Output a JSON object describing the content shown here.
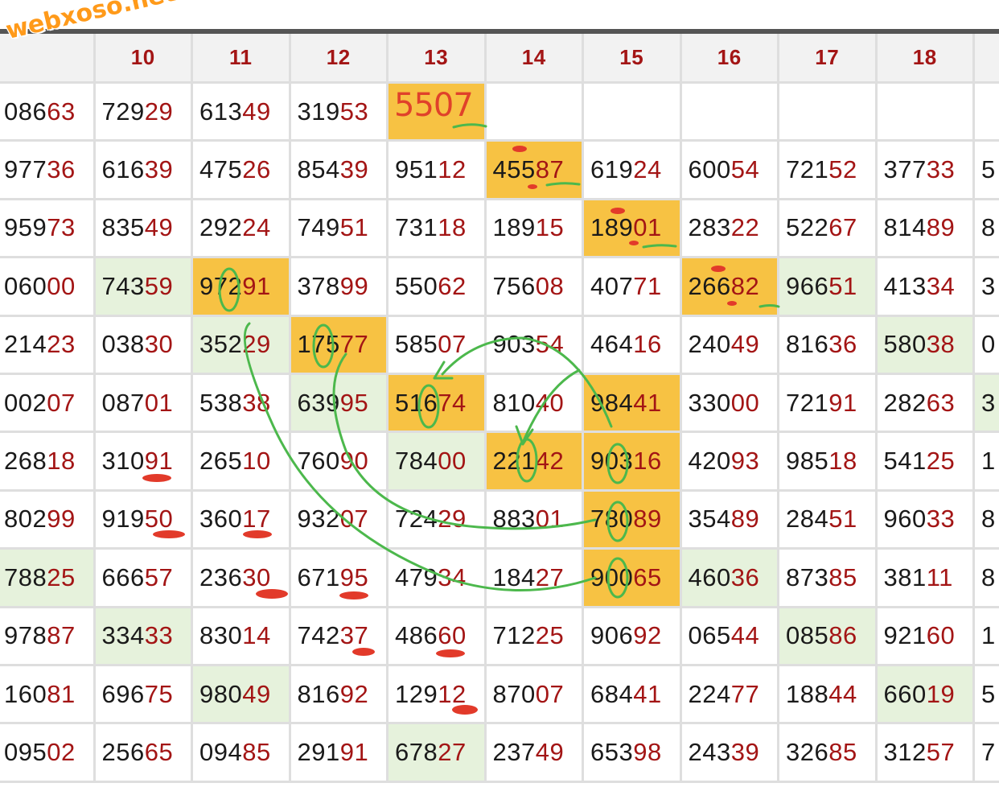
{
  "watermark": "webxoso.net",
  "headers": [
    "",
    "10",
    "11",
    "12",
    "13",
    "14",
    "15",
    "16",
    "17",
    "18",
    ""
  ],
  "handwritten_note": "5507",
  "rows": [
    [
      "08663",
      "72929",
      "61349",
      "31953",
      "",
      "",
      "",
      "",
      "",
      "",
      ""
    ],
    [
      "97736",
      "61639",
      "47526",
      "85439",
      "95112",
      "45587",
      "61924",
      "60054",
      "72152",
      "37733",
      "5"
    ],
    [
      "95973",
      "83549",
      "29224",
      "74951",
      "73118",
      "18915",
      "18901",
      "28322",
      "52267",
      "81489",
      "8"
    ],
    [
      "06000",
      "74359",
      "97291",
      "37899",
      "55062",
      "75608",
      "40771",
      "26682",
      "96651",
      "41334",
      "3"
    ],
    [
      "21423",
      "03830",
      "35229",
      "17577",
      "58507",
      "90354",
      "46416",
      "24049",
      "81636",
      "58038",
      "0"
    ],
    [
      "00207",
      "08701",
      "53838",
      "63995",
      "51674",
      "81040",
      "98441",
      "33000",
      "72191",
      "28263",
      "3"
    ],
    [
      "26818",
      "31091",
      "26510",
      "76090",
      "78400",
      "22142",
      "90316",
      "42093",
      "98518",
      "54125",
      "1"
    ],
    [
      "80299",
      "91950",
      "36017",
      "93207",
      "72429",
      "88301",
      "78089",
      "35489",
      "28451",
      "96033",
      "8"
    ],
    [
      "78825",
      "66657",
      "23630",
      "67195",
      "47934",
      "18427",
      "90065",
      "46036",
      "87385",
      "38111",
      "8"
    ],
    [
      "97887",
      "33433",
      "83014",
      "74237",
      "48660",
      "71225",
      "90692",
      "06544",
      "08586",
      "92160",
      "1"
    ],
    [
      "16081",
      "69675",
      "98049",
      "81692",
      "12912",
      "87007",
      "68441",
      "22477",
      "18844",
      "66019",
      "5"
    ],
    [
      "09502",
      "25665",
      "09485",
      "29191",
      "67827",
      "23749",
      "65398",
      "24339",
      "32685",
      "31257",
      "7"
    ]
  ],
  "highlights": {
    "orange": [
      [
        0,
        4
      ],
      [
        1,
        5
      ],
      [
        2,
        6
      ],
      [
        3,
        2
      ],
      [
        3,
        7
      ],
      [
        4,
        3
      ],
      [
        5,
        4
      ],
      [
        5,
        6
      ],
      [
        6,
        5
      ],
      [
        6,
        6
      ],
      [
        7,
        6
      ],
      [
        8,
        6
      ]
    ],
    "green": [
      [
        3,
        1
      ],
      [
        3,
        8
      ],
      [
        4,
        2
      ],
      [
        4,
        9
      ],
      [
        5,
        3
      ],
      [
        5,
        10
      ],
      [
        6,
        4
      ],
      [
        8,
        0
      ],
      [
        8,
        7
      ],
      [
        9,
        1
      ],
      [
        9,
        8
      ],
      [
        10,
        2
      ],
      [
        10,
        9
      ],
      [
        11,
        4
      ]
    ]
  },
  "colors": {
    "highlight_orange": "#f7c243",
    "highlight_green": "#e6f2dc",
    "tail_digits": "#a31515",
    "marker_green": "#4cb84c",
    "marker_red": "#e23a2a",
    "watermark": "#ff9a1a"
  }
}
